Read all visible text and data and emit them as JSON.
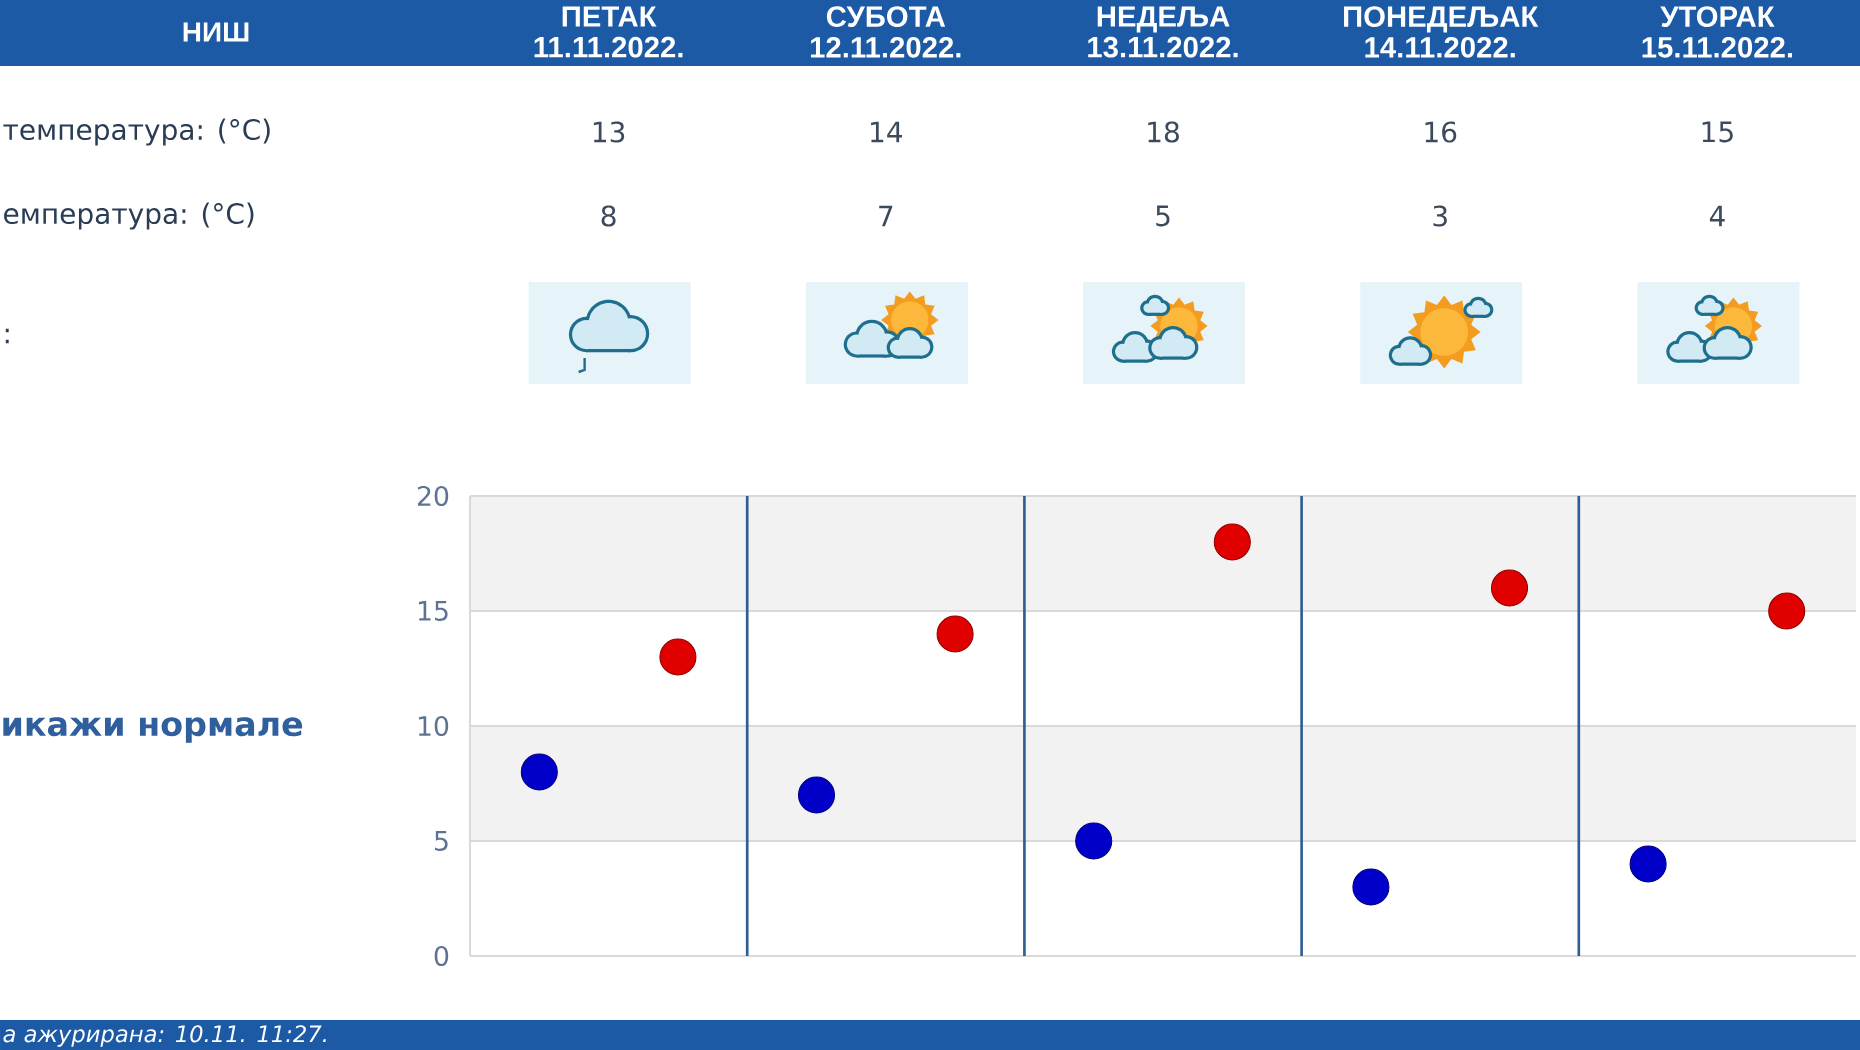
{
  "chart_data": {
    "type": "scatter",
    "title": "НИШ",
    "categories": [
      null,
      null,
      null,
      null,
      null
    ],
    "series": [
      {
        "color": "#e00000",
        "values": [
          13,
          14,
          18,
          16,
          15
        ]
      },
      {
        "color": "#0000c8",
        "values": [
          8,
          7,
          5,
          3,
          4
        ]
      }
    ],
    "ylim": [
      0,
      20
    ],
    "yticks": [
      0,
      5,
      10,
      15,
      20
    ],
    "grid": true,
    "marker": "circle",
    "data_labels": true,
    "bands": [
      {
        "axis": "y",
        "from": 5,
        "to": 10,
        "color": "#f2f2f2"
      },
      {
        "axis": "y",
        "from": 15,
        "to": 20,
        "color": "#f2f2f2"
      }
    ],
    "annotations": [
      "ПЕТАК 11.11.2022.",
      "СУБОТА 12.11.2022.",
      "НЕДЕЉА 13.11.2022.",
      "ПОНЕДЕЉАК 14.11.2022.",
      "УТОРАК 15.11.2022.",
      "температура: (°C)",
      "емпература: (°C)",
      ":",
      "икажи нормале",
      "а ажурирана: 10.11. 11:27."
    ]
  }
}
